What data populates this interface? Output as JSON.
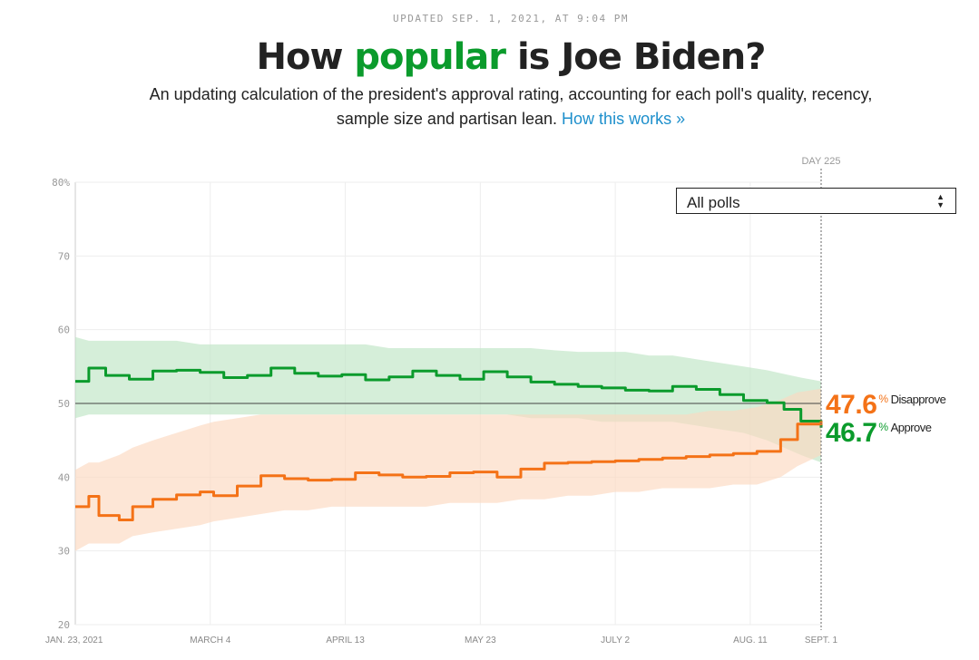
{
  "header": {
    "updated": "UPDATED SEP. 1, 2021, AT 9:04 PM",
    "title_pre": "How ",
    "title_highlight": "popular",
    "title_post": " is Joe Biden?",
    "subtitle": "An updating calculation of the president's approval rating, accounting for each poll's quality, recency, sample size and partisan lean.",
    "subtitle_link": "How this works »"
  },
  "select": {
    "selected": "All polls"
  },
  "readout": {
    "disapprove_value": "47.6",
    "disapprove_label": "Disapprove",
    "approve_value": "46.7",
    "approve_label": "Approve",
    "pct_symbol": "%"
  },
  "colors": {
    "approve": "#0b9b2c",
    "disapprove": "#f47217",
    "approve_band": "#bfe5c4",
    "disapprove_band": "#fcd9c0",
    "link": "#1d8fcc"
  },
  "chart_data": {
    "type": "line",
    "title": "How popular is Joe Biden?",
    "day_marker_label": "DAY 225",
    "ylim": [
      20,
      80
    ],
    "yticks": [
      20,
      30,
      40,
      50,
      60,
      70,
      80
    ],
    "ytick_labels": [
      "20",
      "30",
      "40",
      "50",
      "60",
      "70",
      "80%"
    ],
    "x_range": [
      "2021-01-23",
      "2021-09-01"
    ],
    "xticks": [
      {
        "date": "2021-01-23",
        "label": "JAN. 23, 2021"
      },
      {
        "date": "2021-03-04",
        "label": "MARCH 4"
      },
      {
        "date": "2021-04-13",
        "label": "APRIL 13"
      },
      {
        "date": "2021-05-23",
        "label": "MAY 23"
      },
      {
        "date": "2021-07-02",
        "label": "JULY 2"
      },
      {
        "date": "2021-08-11",
        "label": "AUG. 11"
      },
      {
        "date": "2021-09-01",
        "label": "SEPT. 1"
      }
    ],
    "reference_line": 50,
    "series": [
      {
        "name": "Approve",
        "color": "#0b9b2c",
        "x": [
          "2021-01-23",
          "2021-01-27",
          "2021-02-01",
          "2021-02-08",
          "2021-02-15",
          "2021-02-22",
          "2021-03-01",
          "2021-03-08",
          "2021-03-15",
          "2021-03-22",
          "2021-03-29",
          "2021-04-05",
          "2021-04-12",
          "2021-04-19",
          "2021-04-26",
          "2021-05-03",
          "2021-05-10",
          "2021-05-17",
          "2021-05-24",
          "2021-05-31",
          "2021-06-07",
          "2021-06-14",
          "2021-06-21",
          "2021-06-28",
          "2021-07-05",
          "2021-07-12",
          "2021-07-19",
          "2021-07-26",
          "2021-08-02",
          "2021-08-09",
          "2021-08-16",
          "2021-08-21",
          "2021-08-26",
          "2021-09-01"
        ],
        "values": [
          53.0,
          54.8,
          53.8,
          53.3,
          54.4,
          54.5,
          54.2,
          53.5,
          53.8,
          54.8,
          54.1,
          53.7,
          53.9,
          53.2,
          53.6,
          54.4,
          53.8,
          53.3,
          54.3,
          53.6,
          52.9,
          52.6,
          52.3,
          52.1,
          51.8,
          51.7,
          52.3,
          51.9,
          51.2,
          50.4,
          50.1,
          49.2,
          47.6,
          46.7
        ],
        "band_upper": [
          59,
          58.5,
          58.5,
          58.5,
          58.5,
          58.5,
          58,
          58,
          58,
          58,
          58,
          58,
          58,
          58,
          57.5,
          57.5,
          57.5,
          57.5,
          57.5,
          57.5,
          57.5,
          57.2,
          57,
          57,
          57,
          56.5,
          56.5,
          56,
          55.5,
          55,
          54.5,
          54,
          53.5,
          53
        ],
        "band_lower": [
          48,
          48.5,
          48.5,
          48.5,
          48.5,
          48.5,
          48.5,
          48.5,
          48.5,
          48.5,
          48.5,
          48.5,
          48.5,
          48.5,
          48.5,
          48.5,
          48.5,
          48.5,
          48.5,
          48.5,
          48,
          48,
          48,
          47.5,
          47.5,
          47.5,
          47.5,
          47,
          46.5,
          46,
          45,
          44,
          43,
          42
        ]
      },
      {
        "name": "Disapprove",
        "color": "#f47217",
        "x": [
          "2021-01-23",
          "2021-01-27",
          "2021-01-30",
          "2021-02-05",
          "2021-02-09",
          "2021-02-15",
          "2021-02-22",
          "2021-03-01",
          "2021-03-05",
          "2021-03-12",
          "2021-03-19",
          "2021-03-26",
          "2021-04-02",
          "2021-04-09",
          "2021-04-16",
          "2021-04-23",
          "2021-04-30",
          "2021-05-07",
          "2021-05-14",
          "2021-05-21",
          "2021-05-28",
          "2021-06-04",
          "2021-06-11",
          "2021-06-18",
          "2021-06-25",
          "2021-07-02",
          "2021-07-09",
          "2021-07-16",
          "2021-07-23",
          "2021-07-30",
          "2021-08-06",
          "2021-08-13",
          "2021-08-20",
          "2021-08-25",
          "2021-09-01"
        ],
        "values": [
          36.0,
          37.4,
          34.8,
          34.2,
          36.0,
          37.0,
          37.6,
          38.0,
          37.5,
          38.8,
          40.2,
          39.8,
          39.6,
          39.7,
          40.6,
          40.3,
          40.0,
          40.1,
          40.6,
          40.7,
          40.0,
          41.1,
          41.9,
          42.0,
          42.1,
          42.2,
          42.4,
          42.6,
          42.8,
          43.0,
          43.2,
          43.5,
          45.1,
          47.2,
          47.6
        ],
        "band_upper": [
          41,
          42,
          42,
          43,
          44,
          45,
          46,
          47,
          47.5,
          48,
          48.5,
          48.5,
          48.5,
          48.5,
          48.5,
          48.5,
          48.5,
          48.5,
          48.5,
          48.5,
          48.5,
          48.5,
          48.5,
          48.5,
          48.5,
          48.5,
          48.5,
          48.5,
          48.5,
          49,
          49,
          49.5,
          50.5,
          51.5,
          52
        ],
        "band_lower": [
          30,
          31,
          31,
          31,
          32,
          32.5,
          33,
          33.5,
          34,
          34.5,
          35,
          35.5,
          35.5,
          36,
          36,
          36,
          36,
          36,
          36.5,
          36.5,
          36.5,
          37,
          37,
          37.5,
          37.5,
          38,
          38,
          38.5,
          38.5,
          38.5,
          39,
          39,
          40,
          41.5,
          43
        ]
      }
    ]
  }
}
